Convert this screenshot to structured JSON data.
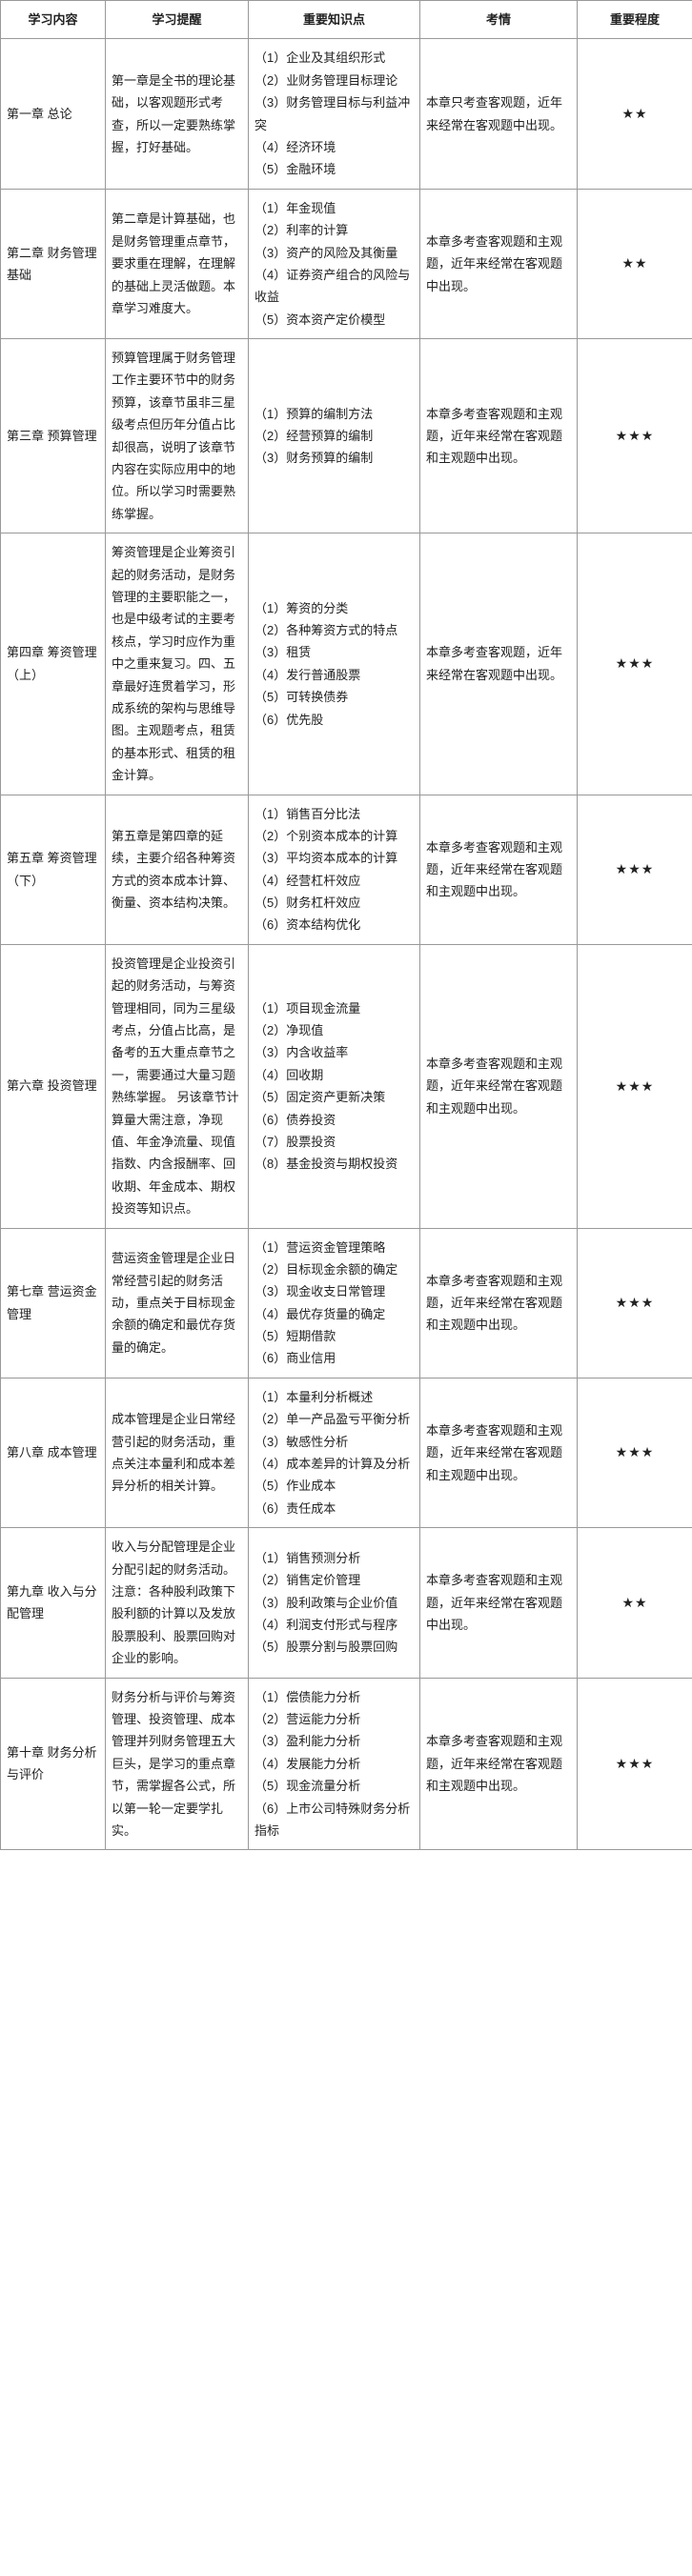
{
  "headers": {
    "content": "学习内容",
    "reminder": "学习提醒",
    "points": "重要知识点",
    "exam": "考情",
    "level": "重要程度"
  },
  "rows": [
    {
      "content": "第一章 总论",
      "reminder": "第一章是全书的理论基础，以客观题形式考查，所以一定要熟练掌握，打好基础。",
      "points": [
        "（1）企业及其组织形式",
        "（2）业财务管理目标理论",
        "（3）财务管理目标与利益冲突",
        "（4）经济环境",
        "（5）金融环境"
      ],
      "exam": "本章只考查客观题，近年来经常在客观题中出现。",
      "level": "★★"
    },
    {
      "content": "第二章 财务管理基础",
      "reminder": "第二章是计算基础，也是财务管理重点章节，要求重在理解，在理解的基础上灵活做题。本章学习难度大。",
      "points": [
        "（1）年金现值",
        "（2）利率的计算",
        "（3）资产的风险及其衡量",
        "（4）证券资产组合的风险与收益",
        "（5）资本资产定价模型"
      ],
      "exam": "本章多考查客观题和主观题，近年来经常在客观题中出现。",
      "level": "★★"
    },
    {
      "content": "第三章 预算管理",
      "reminder": "预算管理属于财务管理工作主要环节中的财务预算，该章节虽非三星级考点但历年分值占比却很高，说明了该章节内容在实际应用中的地位。所以学习时需要熟练掌握。",
      "points": [
        "（1）预算的编制方法",
        "（2）经营预算的编制",
        "（3）财务预算的编制"
      ],
      "exam": "本章多考查客观题和主观题，近年来经常在客观题和主观题中出现。",
      "level": "★★★"
    },
    {
      "content": "第四章 筹资管理（上）",
      "reminder": "筹资管理是企业筹资引起的财务活动，是财务管理的主要职能之一，也是中级考试的主要考核点，学习时应作为重中之重来复习。四、五章最好连贯着学习，形成系统的架构与思维导图。主观题考点，租赁的基本形式、租赁的租金计算。",
      "points": [
        "（1）筹资的分类",
        "（2）各种筹资方式的特点",
        "（3）租赁",
        "（4）发行普通股票",
        "（5）可转换债券",
        "（6）优先股"
      ],
      "exam": "本章多考查客观题，近年来经常在客观题中出现。",
      "level": "★★★"
    },
    {
      "content": "第五章 筹资管理（下）",
      "reminder": "第五章是第四章的延续，主要介绍各种筹资方式的资本成本计算、衡量、资本结构决策。",
      "points": [
        "（1）销售百分比法",
        "（2）个别资本成本的计算",
        "（3）平均资本成本的计算",
        "（4）经营杠杆效应",
        "（5）财务杠杆效应",
        "（6）资本结构优化"
      ],
      "exam": "本章多考查客观题和主观题，近年来经常在客观题和主观题中出现。",
      "level": "★★★"
    },
    {
      "content": "第六章 投资管理",
      "reminder": "投资管理是企业投资引起的财务活动，与筹资管理相同，同为三星级考点，分值占比高，是备考的五大重点章节之一，需要通过大量习题熟练掌握。\n另该章节计算量大需注意，净现值、年金净流量、现值指数、内含报酬率、回收期、年金成本、期权投资等知识点。",
      "points": [
        "（1）项目现金流量",
        "（2）净现值",
        "（3）内含收益率",
        "（4）回收期",
        "（5）固定资产更新决策",
        "（6）债券投资",
        "（7）股票投资",
        "（8）基金投资与期权投资"
      ],
      "exam": "本章多考查客观题和主观题，近年来经常在客观题和主观题中出现。",
      "level": "★★★"
    },
    {
      "content": "第七章 营运资金管理",
      "reminder": "营运资金管理是企业日常经营引起的财务活动，重点关于目标现金余额的确定和最优存货量的确定。",
      "points": [
        "（1）营运资金管理策略",
        "（2）目标现金余额的确定",
        "（3）现金收支日常管理",
        "（4）最优存货量的确定",
        "（5）短期借款",
        "（6）商业信用"
      ],
      "exam": "本章多考查客观题和主观题，近年来经常在客观题和主观题中出现。",
      "level": "★★★"
    },
    {
      "content": "第八章 成本管理",
      "reminder": "成本管理是企业日常经营引起的财务活动，重点关注本量利和成本差异分析的相关计算。",
      "points": [
        "（1）本量利分析概述",
        "（2）单一产品盈亏平衡分析",
        "（3）敏感性分析",
        "（4）成本差异的计算及分析",
        "（5）作业成本",
        "（6）责任成本"
      ],
      "exam": "本章多考查客观题和主观题，近年来经常在客观题和主观题中出现。",
      "level": "★★★"
    },
    {
      "content": "第九章 收入与分配管理",
      "reminder": "收入与分配管理是企业分配引起的财务活动。\n注意：各种股利政策下股利额的计算以及发放股票股利、股票回购对企业的影响。",
      "points": [
        "（1）销售预测分析",
        "（2）销售定价管理",
        "（3）股利政策与企业价值",
        "（4）利润支付形式与程序",
        "（5）股票分割与股票回购"
      ],
      "exam": "本章多考查客观题和主观题，近年来经常在客观题中出现。",
      "level": "★★"
    },
    {
      "content": "第十章 财务分析与评价",
      "reminder": "财务分析与评价与筹资管理、投资管理、成本管理并列财务管理五大巨头，是学习的重点章节，需掌握各公式，所以第一轮一定要学扎实。",
      "points": [
        "（1）偿债能力分析",
        "（2）营运能力分析",
        "（3）盈利能力分析",
        "（4）发展能力分析",
        "（5）现金流量分析",
        "（6）上市公司特殊财务分析指标"
      ],
      "exam": "本章多考查客观题和主观题，近年来经常在客观题和主观题中出现。",
      "level": "★★★"
    }
  ]
}
